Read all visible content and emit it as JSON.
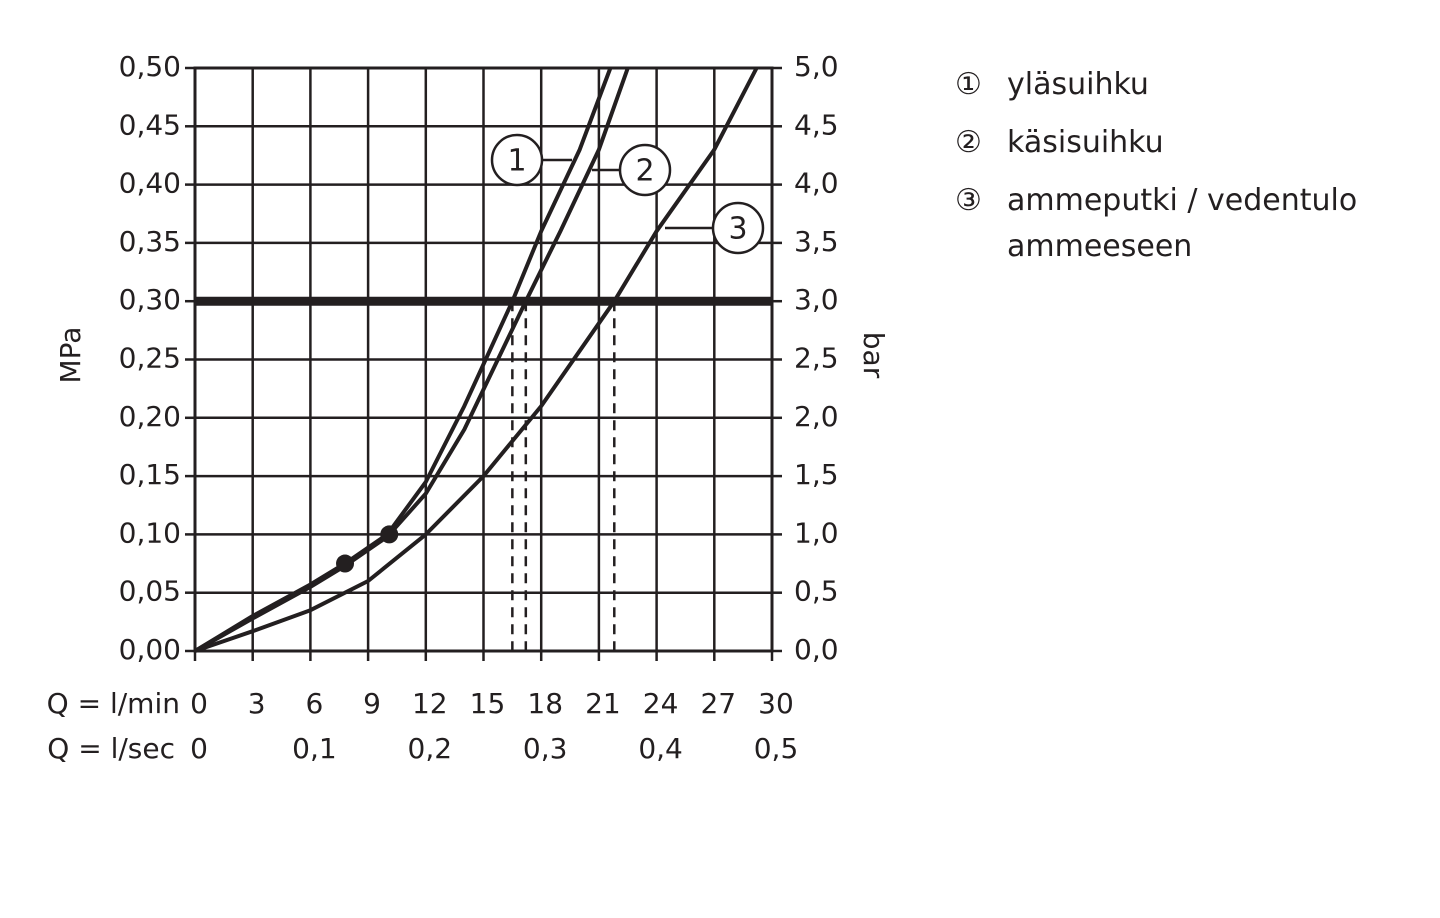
{
  "chart_data": {
    "type": "line",
    "y_label": "MPa",
    "y2_label": "bar",
    "x_label": "Q = l/min",
    "x2_label": "Q = l/sec",
    "xlim": [
      0,
      30
    ],
    "xticks": [
      0,
      3,
      6,
      9,
      12,
      15,
      18,
      21,
      24,
      27,
      30
    ],
    "x2lim": [
      0,
      0.5
    ],
    "x2ticks": [
      0,
      {
        "value": 0.1,
        "label": "0,1"
      },
      {
        "value": 0.2,
        "label": "0,2"
      },
      {
        "value": 0.3,
        "label": "0,3"
      },
      {
        "value": 0.4,
        "label": "0,4"
      },
      {
        "value": 0.5,
        "label": "0,5"
      }
    ],
    "ylim": [
      0,
      0.5
    ],
    "yticks": [
      {
        "value": 0,
        "label": "0,00"
      },
      {
        "value": 0.05,
        "label": "0,05"
      },
      {
        "value": 0.1,
        "label": "0,10"
      },
      {
        "value": 0.15,
        "label": "0,15"
      },
      {
        "value": 0.2,
        "label": "0,20"
      },
      {
        "value": 0.25,
        "label": "0,25"
      },
      {
        "value": 0.3,
        "label": "0,30"
      },
      {
        "value": 0.35,
        "label": "0,35"
      },
      {
        "value": 0.4,
        "label": "0,40"
      },
      {
        "value": 0.45,
        "label": "0,45"
      },
      {
        "value": 0.5,
        "label": "0,50"
      }
    ],
    "y2lim": [
      0,
      5
    ],
    "y2ticks": [
      {
        "value": 0,
        "label": "0,0"
      },
      {
        "value": 0.5,
        "label": "0,5"
      },
      {
        "value": 1,
        "label": "1,0"
      },
      {
        "value": 1.5,
        "label": "1,5"
      },
      {
        "value": 2,
        "label": "2,0"
      },
      {
        "value": 2.5,
        "label": "2,5"
      },
      {
        "value": 3,
        "label": "3,0"
      },
      {
        "value": 3.5,
        "label": "3,5"
      },
      {
        "value": 4,
        "label": "4,0"
      },
      {
        "value": 4.5,
        "label": "4,5"
      },
      {
        "value": 5,
        "label": "5,0"
      }
    ],
    "grid": true,
    "reference_line": 0.3,
    "drop_lines": [
      16.5,
      17.2,
      21.8
    ],
    "series": [
      {
        "name": "yläsuihku",
        "label": "1",
        "marker": "①",
        "color": "#231f20",
        "x": [
          0,
          3,
          6,
          7.8,
          10,
          12,
          14,
          16.5,
          18,
          20,
          21.6
        ],
        "values": [
          0,
          0.03,
          0.057,
          0.075,
          0.1,
          0.145,
          0.21,
          0.3,
          0.36,
          0.43,
          0.5
        ]
      },
      {
        "name": "käsisuihku",
        "label": "2",
        "marker": "②",
        "color": "#231f20",
        "x": [
          0,
          3,
          6,
          7.8,
          10,
          12,
          14,
          17.2,
          19,
          21,
          22.5
        ],
        "values": [
          0,
          0.028,
          0.055,
          0.073,
          0.098,
          0.135,
          0.19,
          0.3,
          0.36,
          0.43,
          0.5
        ]
      },
      {
        "name": "ammeputki / vedentulo ammeeseen",
        "label": "3",
        "marker": "③",
        "color": "#231f20",
        "x": [
          0,
          3,
          6,
          9,
          12,
          15,
          18,
          21.8,
          24,
          27,
          29.2
        ],
        "values": [
          0,
          0.017,
          0.035,
          0.06,
          0.1,
          0.15,
          0.21,
          0.3,
          0.36,
          0.43,
          0.5
        ]
      }
    ],
    "points": {
      "x": [
        7.8,
        10.1
      ],
      "values": [
        0.075,
        0.1
      ]
    }
  }
}
